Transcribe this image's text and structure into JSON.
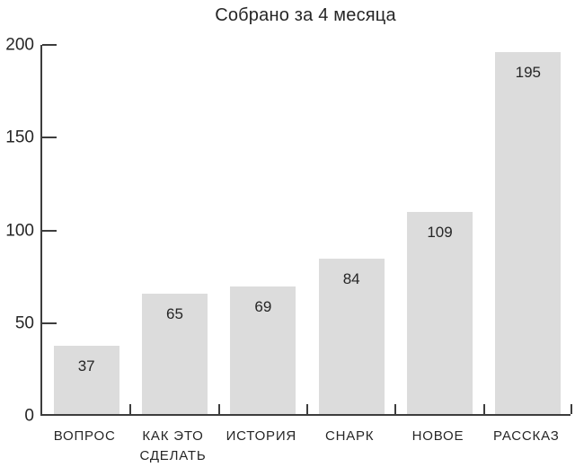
{
  "chart_data": {
    "type": "bar",
    "title": "Собрано за 4 месяца",
    "categories": [
      "ВОПРОС",
      "КАК ЭТО СДЕЛАТЬ",
      "ИСТОРИЯ",
      "СНАРК",
      "НОВОЕ",
      "РАССКАЗ"
    ],
    "values": [
      37,
      65,
      69,
      84,
      109,
      195
    ],
    "value_labels": [
      "37",
      "65",
      "69",
      "84",
      "109",
      "195"
    ],
    "xlabel": "",
    "ylabel": "",
    "ylim": [
      0,
      200
    ],
    "yticks": [
      0,
      50,
      100,
      150,
      200
    ],
    "grid": false,
    "legend": null,
    "value_label_position": "inside-top",
    "colors": {
      "bar_fill": "#dcdcdc",
      "text": "#262626",
      "axis": "#3d3d3d",
      "background": "#ffffff"
    }
  }
}
